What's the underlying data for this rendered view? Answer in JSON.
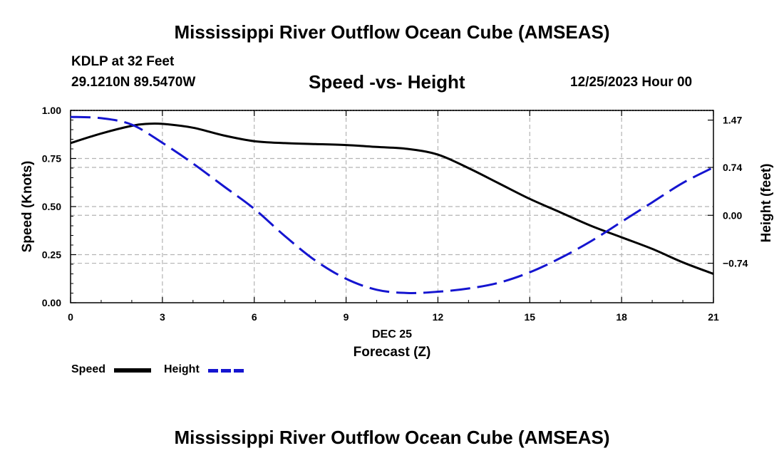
{
  "header": {
    "main_title": "Mississippi River Outflow Ocean Cube (AMSEAS)",
    "station": "KDLP at 32 Feet",
    "coords": "29.1210N  89.5470W",
    "subtitle": "Speed -vs- Height",
    "datetime": "12/25/2023 Hour 00"
  },
  "footer": {
    "main_title": "Mississippi River Outflow Ocean Cube (AMSEAS)"
  },
  "legend": {
    "speed_label": "Speed",
    "height_label": "Height"
  },
  "colors": {
    "speed": "#000000",
    "height": "#1515d0",
    "grid": "#b4b4b4"
  },
  "chart_data": {
    "type": "line",
    "title": "Speed -vs- Height",
    "xlabel": "Forecast (Z)",
    "xdate_label": "DEC 25",
    "xlim": [
      0,
      21
    ],
    "x_ticks": [
      0,
      3,
      6,
      9,
      12,
      15,
      18,
      21
    ],
    "x_tick_labels": [
      "0",
      "3",
      "6",
      "9",
      "12",
      "15",
      "18",
      "21"
    ],
    "ylabel_left": "Speed (Knots)",
    "ylim_left": [
      0,
      1
    ],
    "y_ticks_left": [
      0,
      0.25,
      0.5,
      0.75,
      1.0
    ],
    "y_tick_labels_left": [
      "0.00",
      "0.25",
      "0.50",
      "0.75",
      "1.00"
    ],
    "ylabel_right": "Height (feet)",
    "ylim_right": [
      -1.35,
      1.62
    ],
    "y_ticks_right": [
      -0.74,
      0.0,
      0.74,
      1.47
    ],
    "y_tick_labels_right": [
      "−0.74",
      "0.00",
      "0.74",
      "1.47"
    ],
    "grid": true,
    "series": [
      {
        "name": "Speed",
        "axis": "left",
        "style": "solid",
        "x": [
          0,
          1,
          2,
          2.5,
          3,
          4,
          5,
          6,
          7,
          8,
          9,
          10,
          11,
          12,
          13,
          14,
          15,
          16,
          17,
          18,
          19,
          20,
          21
        ],
        "values": [
          0.83,
          0.88,
          0.92,
          0.93,
          0.93,
          0.91,
          0.87,
          0.84,
          0.83,
          0.825,
          0.82,
          0.81,
          0.8,
          0.77,
          0.7,
          0.62,
          0.54,
          0.47,
          0.4,
          0.34,
          0.28,
          0.21,
          0.15
        ]
      },
      {
        "name": "Height",
        "axis": "right",
        "style": "dashed",
        "x": [
          0,
          1,
          2,
          3,
          4,
          5,
          6,
          7,
          8,
          9,
          10,
          11,
          12,
          13,
          14,
          15,
          16,
          17,
          18,
          19,
          20,
          21
        ],
        "values": [
          1.52,
          1.5,
          1.4,
          1.12,
          0.8,
          0.45,
          0.1,
          -0.32,
          -0.7,
          -0.98,
          -1.15,
          -1.2,
          -1.18,
          -1.13,
          -1.04,
          -0.88,
          -0.66,
          -0.4,
          -0.1,
          0.2,
          0.5,
          0.74
        ]
      }
    ]
  }
}
